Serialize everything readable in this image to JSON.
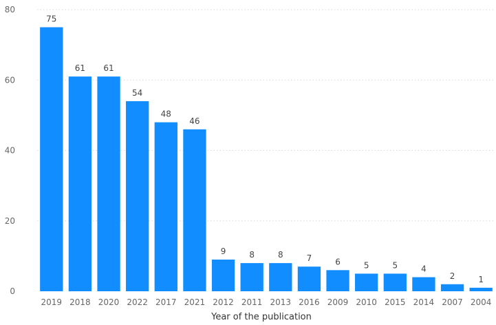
{
  "chart_data": {
    "type": "bar",
    "title": "",
    "xlabel": "Year of the publication",
    "ylabel": "",
    "categories": [
      "2019",
      "2018",
      "2020",
      "2022",
      "2017",
      "2021",
      "2012",
      "2011",
      "2013",
      "2016",
      "2009",
      "2010",
      "2015",
      "2014",
      "2007",
      "2004"
    ],
    "values": [
      75,
      61,
      61,
      54,
      48,
      46,
      9,
      8,
      8,
      7,
      6,
      5,
      5,
      4,
      2,
      1
    ],
    "ylim": [
      0,
      80
    ],
    "yticks": [
      0,
      20,
      40,
      60,
      80
    ],
    "grid": true,
    "bar_color": "#118DFF",
    "grid_color": "#d9d9d9"
  }
}
